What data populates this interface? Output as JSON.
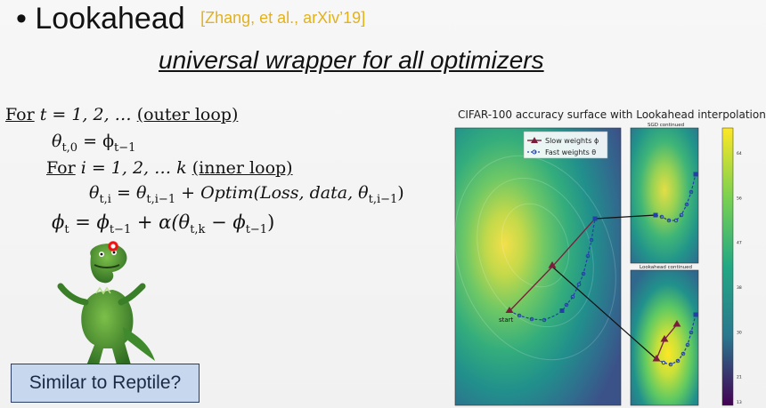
{
  "slide": {
    "title": "Lookahead",
    "citation": "[Zhang, et al., arXiv’19]",
    "subtitle": "universal wrapper for all optimizers",
    "callout": "Similar to Reptile?"
  },
  "algorithm": {
    "for1": "For",
    "line1": " t = 1, 2, … ",
    "outer_loop": "(outer loop)",
    "line2_lhs": "θ",
    "line2_sub": "t,0",
    "line2_rhs": " = ϕ",
    "line2_rhs_sub": "t−1",
    "for2": "For",
    "line3": " i = 1, 2, … k ",
    "inner_loop": "(inner loop)",
    "line4_a": "θ",
    "line4_a_sub": "t,i",
    "line4_b": " = θ",
    "line4_b_sub": "t,i−1",
    "line4_c": " + Optim(Loss, data, θ",
    "line4_c_sub": "t,i−1",
    "line4_d": ")",
    "line5_a": "ϕ",
    "line5_a_sub": "t",
    "line5_b": " = ϕ",
    "line5_b_sub": "t−1",
    "line5_c": " + α(θ",
    "line5_c_sub": "t,k",
    "line5_d": " − ϕ",
    "line5_d_sub": "t−1",
    "line5_e": ")"
  },
  "figure": {
    "title": "CIFAR-100 accuracy surface with Lookahead interpolation",
    "panel_sgd": "SGD continued",
    "panel_lookahead": "Lookahead continued",
    "legend_slow": "Slow weights ϕ",
    "legend_fast": "Fast weights θ",
    "start_label": "start",
    "colorbar_ticks": [
      "64",
      "56",
      "47",
      "38",
      "30",
      "21",
      "13"
    ],
    "colors": {
      "slow": "#7b1e3c",
      "fast": "#2340a8",
      "trajectory": "#111111"
    }
  }
}
